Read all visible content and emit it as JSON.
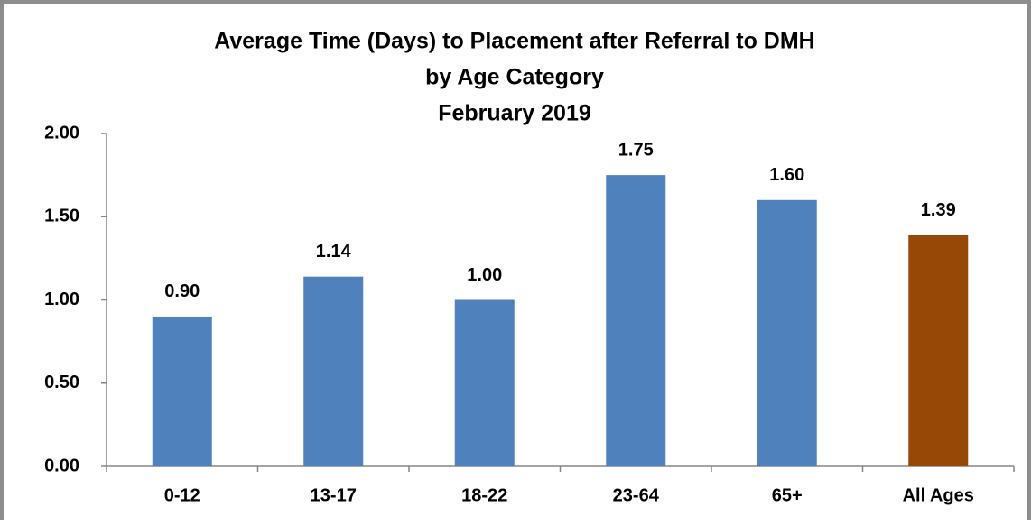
{
  "chart_data": {
    "type": "bar",
    "title": [
      "Average Time (Days) to Placement after Referral to DMH",
      "by Age Category",
      "February 2019"
    ],
    "categories": [
      "0-12",
      "13-17",
      "18-22",
      "23-64",
      "65+",
      "All Ages"
    ],
    "values": [
      0.9,
      1.14,
      1.0,
      1.75,
      1.6,
      1.39
    ],
    "value_labels": [
      "0.90",
      "1.14",
      "1.00",
      "1.75",
      "1.60",
      "1.39"
    ],
    "colors": [
      "#4f81bd",
      "#4f81bd",
      "#4f81bd",
      "#4f81bd",
      "#4f81bd",
      "#974706"
    ],
    "ylim": [
      0,
      2
    ],
    "yticks": [
      {
        "value": 0,
        "label": "0.00"
      },
      {
        "value": 0.5,
        "label": "0.50"
      },
      {
        "value": 1,
        "label": "1.00"
      },
      {
        "value": 1.5,
        "label": "1.50"
      },
      {
        "value": 2,
        "label": "2.00"
      }
    ],
    "grid": false
  }
}
